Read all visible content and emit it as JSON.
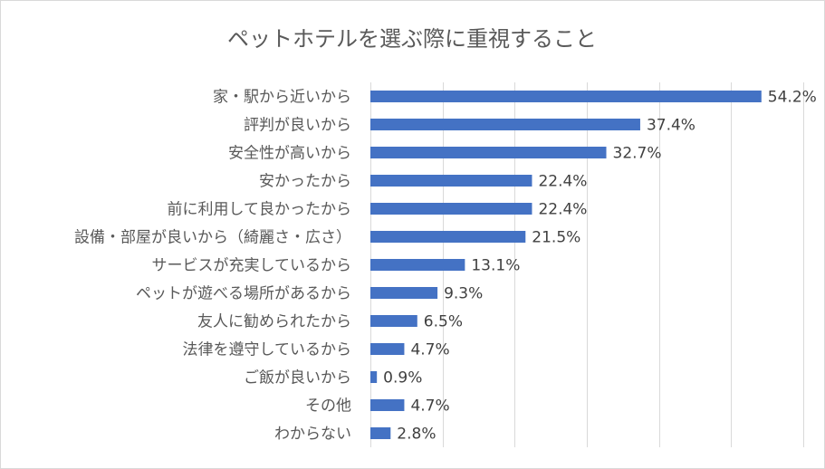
{
  "chart_data": {
    "type": "bar",
    "orientation": "horizontal",
    "title": "ペットホテルを選ぶ際に重視すること",
    "xlabel": "",
    "ylabel": "",
    "xlim": [
      0,
      60
    ],
    "grid": true,
    "legend": "none",
    "color": "#4472c4",
    "categories": [
      "家・駅から近いから",
      "評判が良いから",
      "安全性が高いから",
      "安かったから",
      "前に利用して良かったから",
      "設備・部屋が良いから（綺麗さ・広さ）",
      "サービスが充実しているから",
      "ペットが遊べる場所があるから",
      "友人に勧められたから",
      "法律を遵守しているから",
      "ご飯が良いから",
      "その他",
      "わからない"
    ],
    "values": [
      54.2,
      37.4,
      32.7,
      22.4,
      22.4,
      21.5,
      13.1,
      9.3,
      6.5,
      4.7,
      0.9,
      4.7,
      2.8
    ],
    "labels": [
      "54.2%",
      "37.4%",
      "32.7%",
      "22.4%",
      "22.4%",
      "21.5%",
      "13.1%",
      "9.3%",
      "6.5%",
      "4.7%",
      "0.9%",
      "4.7%",
      "2.8%"
    ]
  }
}
